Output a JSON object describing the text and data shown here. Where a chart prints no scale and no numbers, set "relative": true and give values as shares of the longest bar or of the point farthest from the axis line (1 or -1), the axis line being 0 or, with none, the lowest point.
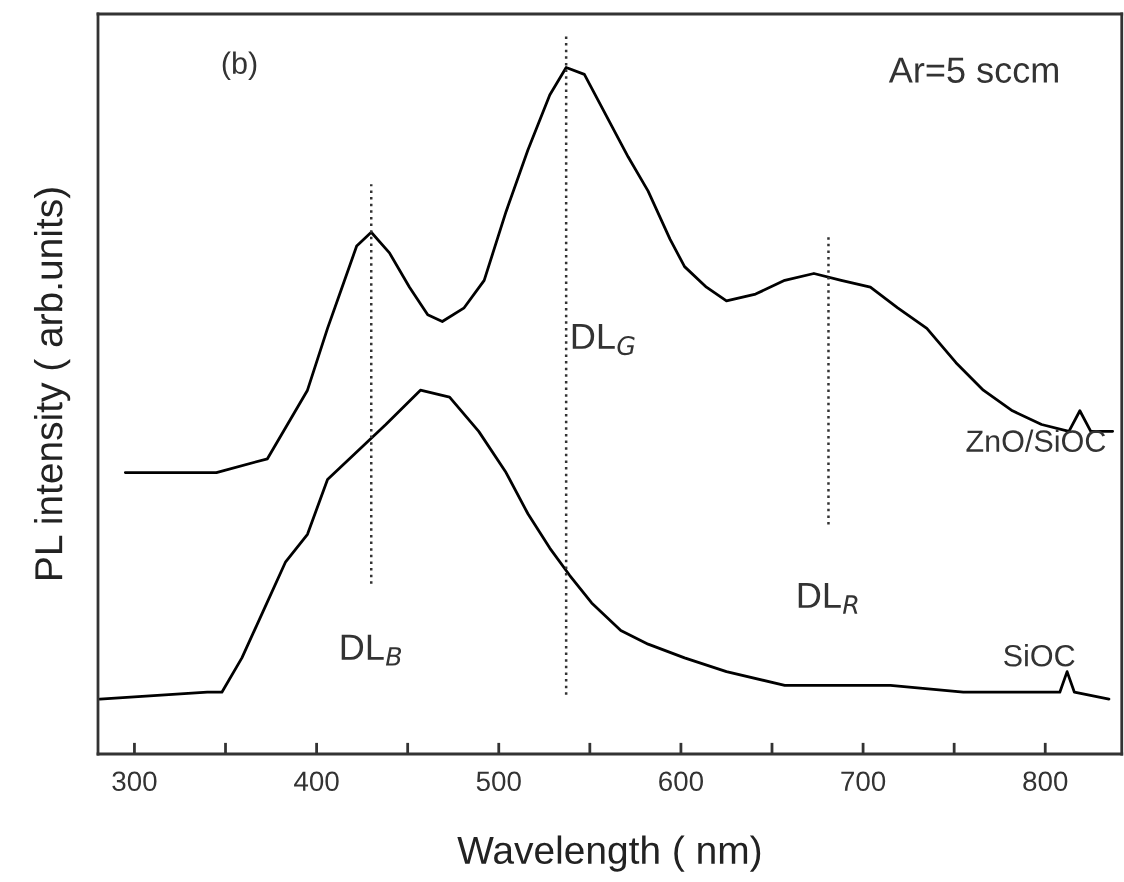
{
  "chart_data": {
    "type": "line",
    "relative": true,
    "xlabel": "Wavelength ( nm)",
    "ylabel": "PL intensity ( arb.units)",
    "xlim": [
      280,
      842
    ],
    "xticks": [
      300,
      {
        "value": 350,
        "label": null
      },
      400,
      {
        "value": 450,
        "label": null
      },
      500,
      {
        "value": 550,
        "label": null
      },
      600,
      {
        "value": 650,
        "label": null
      },
      700,
      {
        "value": 750,
        "label": null
      },
      800
    ],
    "series": [
      {
        "name": "ZnO/SiOC",
        "color": "#000000",
        "x": [
          295,
          320,
          345,
          373,
          395,
          406,
          414,
          422,
          430,
          440,
          451,
          461,
          469,
          481,
          492,
          504,
          516,
          528,
          537,
          547,
          559,
          571,
          582,
          594,
          602,
          614,
          625,
          641,
          657,
          673,
          688,
          704,
          719,
          735,
          751,
          766,
          782,
          798,
          813,
          819,
          825,
          837
        ],
        "values": [
          0.41,
          0.41,
          0.41,
          0.43,
          0.53,
          0.62,
          0.68,
          0.74,
          0.76,
          0.73,
          0.68,
          0.64,
          0.63,
          0.65,
          0.69,
          0.79,
          0.88,
          0.96,
          1.0,
          0.99,
          0.93,
          0.87,
          0.82,
          0.75,
          0.71,
          0.68,
          0.66,
          0.67,
          0.69,
          0.7,
          0.69,
          0.68,
          0.65,
          0.62,
          0.57,
          0.53,
          0.5,
          0.48,
          0.47,
          0.5,
          0.47,
          0.47
        ]
      },
      {
        "name": "SiOC",
        "color": "#000000",
        "x": [
          281,
          340,
          348,
          359,
          371,
          383,
          395,
          406,
          422,
          438,
          457,
          473,
          489,
          504,
          516,
          528,
          539,
          551,
          567,
          582,
          602,
          625,
          657,
          681,
          715,
          755,
          798,
          808,
          812,
          816,
          835
        ],
        "values": [
          0.08,
          0.09,
          0.09,
          0.14,
          0.21,
          0.28,
          0.32,
          0.4,
          0.44,
          0.48,
          0.53,
          0.52,
          0.47,
          0.41,
          0.35,
          0.3,
          0.26,
          0.22,
          0.18,
          0.16,
          0.14,
          0.12,
          0.1,
          0.1,
          0.1,
          0.09,
          0.09,
          0.09,
          0.12,
          0.09,
          0.08
        ]
      }
    ],
    "ref_lines": [
      {
        "axis": "x",
        "value": 430,
        "label": "DL$_{B}$",
        "line_style": "dotted"
      },
      {
        "axis": "x",
        "value": 537,
        "label": "DL$_{G}$",
        "line_style": "dotted"
      },
      {
        "axis": "x",
        "value": 681,
        "label": "DL$_{R}$",
        "line_style": "dotted"
      }
    ],
    "annotations": [
      "(b)",
      "Ar=5 sccm"
    ],
    "line_style": "solid",
    "marker": "none",
    "grid": false,
    "legend": false
  }
}
